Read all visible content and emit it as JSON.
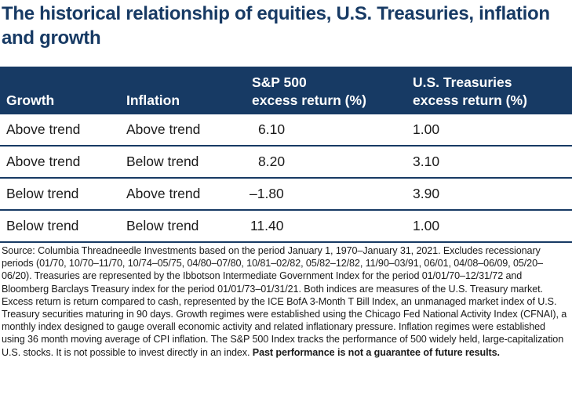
{
  "title": "The historical relationship of equities, U.S. Treasuries, inflation and growth",
  "table": {
    "headers": {
      "growth": "Growth",
      "inflation": "Inflation",
      "sp500_line1": "S&P 500",
      "sp500_line2": "excess return (%)",
      "treasuries_line1": "U.S. Treasuries",
      "treasuries_line2": "excess return (%)"
    },
    "rows": [
      {
        "growth": "Above trend",
        "inflation": "Above trend",
        "sp500": "6.10",
        "treasuries": "1.00"
      },
      {
        "growth": "Above trend",
        "inflation": "Below trend",
        "sp500": "8.20",
        "treasuries": "3.10"
      },
      {
        "growth": "Below trend",
        "inflation": "Above trend",
        "sp500": "–1.80",
        "treasuries": "3.90"
      },
      {
        "growth": "Below trend",
        "inflation": "Below trend",
        "sp500": "11.40",
        "treasuries": "1.00"
      }
    ]
  },
  "footnote": {
    "text": "Source: Columbia Threadneedle Investments based on the period January 1, 1970–January 31, 2021. Excludes recessionary periods (01/70, 10/70–11/70, 10/74–05/75, 04/80–07/80, 10/81–02/82, 05/82–12/82, 11/90–03/91, 06/01, 04/08–06/09, 05/20–06/20). Treasuries are represented by the Ibbotson Intermediate Government Index for the period 01/01/70–12/31/72 and Bloomberg Barclays Treasury index for the period 01/01/73–01/31/21. Both indices are measures of the U.S. Treasury market. Excess return is return compared to cash, represented by the ICE BofA 3-Month T Bill Index, an unmanaged market index of U.S. Treasury securities maturing in 90 days. Growth regimes were established using the Chicago Fed National Activity Index (CFNAI), a monthly index designed to gauge overall economic activity and related inflationary pressure. Inflation regimes were established using 36 month moving average of CPI inflation. The S&P 500 Index tracks the performance of 500 widely held, large-capitalization U.S. stocks. It is not possible to invest directly in an index.",
    "bold_text": "Past performance is not a guarantee of future results."
  },
  "colors": {
    "header_bg": "#173a64",
    "title": "#173a64",
    "row_border": "#173a64"
  }
}
